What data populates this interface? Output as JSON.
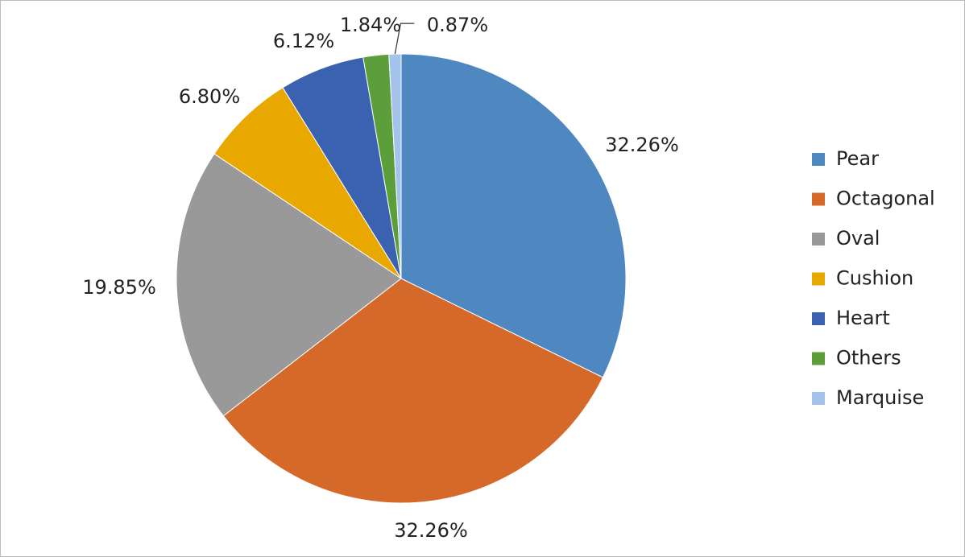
{
  "chart_data": {
    "type": "pie",
    "categories": [
      "Pear",
      "Octagonal",
      "Oval",
      "Cushion",
      "Heart",
      "Others",
      "Marquise"
    ],
    "values": [
      32.26,
      32.26,
      19.85,
      6.8,
      6.12,
      1.84,
      0.87
    ],
    "value_labels": [
      "32.26%",
      "32.26%",
      "19.85%",
      "6.80%",
      "6.12%",
      "1.84%",
      "0.87%"
    ],
    "colors": [
      "#4f87c0",
      "#d5692a",
      "#999999",
      "#e9a800",
      "#3a62b1",
      "#5b9e3a",
      "#a3c3eb"
    ],
    "legend": "right"
  }
}
